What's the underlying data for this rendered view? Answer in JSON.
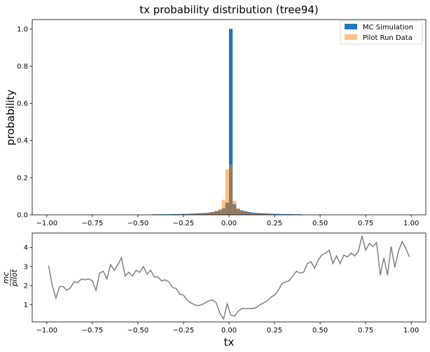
{
  "chart_data": [
    {
      "type": "bar",
      "title": "tx probability distribution (tree94)",
      "xlabel": "",
      "ylabel": "probability",
      "xlim": [
        -1.08,
        1.08
      ],
      "ylim": [
        0,
        1.05
      ],
      "xticks": [
        -1.0,
        -0.75,
        -0.5,
        -0.25,
        0.0,
        0.25,
        0.5,
        0.75,
        1.0
      ],
      "xtick_labels": [
        "−1.00",
        "−0.75",
        "−0.50",
        "−0.25",
        "0.00",
        "0.25",
        "0.50",
        "0.75",
        "1.00"
      ],
      "yticks": [
        0.0,
        0.2,
        0.4,
        0.6,
        0.8,
        1.0
      ],
      "ytick_labels": [
        "0.0",
        "0.2",
        "0.4",
        "0.6",
        "0.8",
        "1.0"
      ],
      "grid": false,
      "legend_position": "top-right",
      "bin_width": 0.02,
      "series": [
        {
          "name": "MC Simulation",
          "color": "#1f77b4",
          "bins": [
            [
              -0.42,
              0.003
            ],
            [
              -0.4,
              0.003
            ],
            [
              -0.38,
              0.003
            ],
            [
              -0.36,
              0.003
            ],
            [
              -0.34,
              0.003
            ],
            [
              -0.32,
              0.004
            ],
            [
              -0.3,
              0.004
            ],
            [
              -0.28,
              0.004
            ],
            [
              -0.26,
              0.005
            ],
            [
              -0.24,
              0.005
            ],
            [
              -0.22,
              0.006
            ],
            [
              -0.2,
              0.007
            ],
            [
              -0.18,
              0.008
            ],
            [
              -0.16,
              0.009
            ],
            [
              -0.14,
              0.01
            ],
            [
              -0.12,
              0.012
            ],
            [
              -0.1,
              0.015
            ],
            [
              -0.08,
              0.019
            ],
            [
              -0.06,
              0.025
            ],
            [
              -0.04,
              0.035
            ],
            [
              -0.02,
              0.065
            ],
            [
              0.0,
              1.0
            ],
            [
              0.02,
              0.058
            ],
            [
              0.04,
              0.033
            ],
            [
              0.06,
              0.024
            ],
            [
              0.08,
              0.019
            ],
            [
              0.1,
              0.015
            ],
            [
              0.12,
              0.012
            ],
            [
              0.14,
              0.01
            ],
            [
              0.16,
              0.009
            ],
            [
              0.18,
              0.008
            ],
            [
              0.2,
              0.007
            ],
            [
              0.22,
              0.006
            ],
            [
              0.24,
              0.005
            ],
            [
              0.26,
              0.005
            ],
            [
              0.28,
              0.004
            ],
            [
              0.3,
              0.004
            ],
            [
              0.32,
              0.004
            ],
            [
              0.34,
              0.003
            ],
            [
              0.36,
              0.003
            ],
            [
              0.38,
              0.003
            ]
          ]
        },
        {
          "name": "Pilot Run Data",
          "color": "#ff7f0e",
          "opacity": 0.5,
          "bins": [
            [
              -0.3,
              0.001
            ],
            [
              -0.28,
              0.002
            ],
            [
              -0.26,
              0.002
            ],
            [
              -0.24,
              0.003
            ],
            [
              -0.22,
              0.004
            ],
            [
              -0.2,
              0.005
            ],
            [
              -0.18,
              0.006
            ],
            [
              -0.16,
              0.007
            ],
            [
              -0.14,
              0.009
            ],
            [
              -0.12,
              0.012
            ],
            [
              -0.1,
              0.016
            ],
            [
              -0.08,
              0.022
            ],
            [
              -0.06,
              0.032
            ],
            [
              -0.04,
              0.08
            ],
            [
              -0.02,
              0.245
            ],
            [
              0.0,
              0.27
            ],
            [
              0.02,
              0.075
            ],
            [
              0.04,
              0.032
            ],
            [
              0.06,
              0.022
            ],
            [
              0.08,
              0.016
            ],
            [
              0.1,
              0.012
            ],
            [
              0.12,
              0.009
            ],
            [
              0.14,
              0.007
            ],
            [
              0.16,
              0.006
            ],
            [
              0.18,
              0.005
            ],
            [
              0.2,
              0.004
            ],
            [
              0.22,
              0.003
            ],
            [
              0.24,
              0.002
            ],
            [
              0.26,
              0.002
            ]
          ]
        }
      ]
    },
    {
      "type": "line",
      "title": "",
      "xlabel": "tx",
      "ylabel": "mc/pilot",
      "ylabel_numerator": "mc",
      "ylabel_denominator": "pilot",
      "xlim": [
        -1.08,
        1.08
      ],
      "ylim": [
        0.1,
        4.75
      ],
      "xticks": [
        -1.0,
        -0.75,
        -0.5,
        -0.25,
        0.0,
        0.25,
        0.5,
        0.75,
        1.0
      ],
      "xtick_labels": [
        "−1.00",
        "−0.75",
        "−0.50",
        "−0.25",
        "0.00",
        "0.25",
        "0.50",
        "0.75",
        "1.00"
      ],
      "yticks": [
        1,
        2,
        3,
        4
      ],
      "ytick_labels": [
        "1",
        "2",
        "3",
        "4"
      ],
      "grid": false,
      "series": [
        {
          "color": "#808080",
          "x": [
            -0.99,
            -0.97,
            -0.95,
            -0.93,
            -0.91,
            -0.89,
            -0.87,
            -0.85,
            -0.83,
            -0.81,
            -0.79,
            -0.77,
            -0.75,
            -0.73,
            -0.71,
            -0.69,
            -0.67,
            -0.65,
            -0.63,
            -0.61,
            -0.59,
            -0.57,
            -0.55,
            -0.53,
            -0.51,
            -0.49,
            -0.47,
            -0.45,
            -0.43,
            -0.41,
            -0.39,
            -0.37,
            -0.35,
            -0.33,
            -0.31,
            -0.29,
            -0.27,
            -0.25,
            -0.23,
            -0.21,
            -0.19,
            -0.17,
            -0.15,
            -0.13,
            -0.11,
            -0.09,
            -0.07,
            -0.05,
            -0.03,
            -0.01,
            0.01,
            0.03,
            0.05,
            0.07,
            0.09,
            0.11,
            0.13,
            0.15,
            0.17,
            0.19,
            0.21,
            0.23,
            0.25,
            0.27,
            0.29,
            0.31,
            0.33,
            0.35,
            0.37,
            0.39,
            0.41,
            0.43,
            0.45,
            0.47,
            0.49,
            0.51,
            0.53,
            0.55,
            0.57,
            0.59,
            0.61,
            0.63,
            0.65,
            0.67,
            0.69,
            0.71,
            0.73,
            0.75,
            0.77,
            0.79,
            0.81,
            0.83,
            0.85,
            0.87,
            0.89,
            0.91,
            0.93,
            0.95,
            0.97,
            0.99
          ],
          "y": [
            3.05,
            2.0,
            1.35,
            1.95,
            1.95,
            1.75,
            1.9,
            2.2,
            2.15,
            2.35,
            2.3,
            2.35,
            2.25,
            1.75,
            2.65,
            2.75,
            2.35,
            3.1,
            2.8,
            3.1,
            3.45,
            2.5,
            2.7,
            2.5,
            2.8,
            2.7,
            3.0,
            2.6,
            2.8,
            2.45,
            2.45,
            2.25,
            2.3,
            2.2,
            1.9,
            1.85,
            1.55,
            1.5,
            1.25,
            1.1,
            1.0,
            0.95,
            1.0,
            1.1,
            1.2,
            1.25,
            1.1,
            0.55,
            0.25,
            1.05,
            0.45,
            0.4,
            0.65,
            0.8,
            0.8,
            0.8,
            0.8,
            0.85,
            1.0,
            1.1,
            1.2,
            1.4,
            1.5,
            1.75,
            2.1,
            2.2,
            2.25,
            2.5,
            2.75,
            2.65,
            2.7,
            3.15,
            3.25,
            2.9,
            3.35,
            3.6,
            3.7,
            3.85,
            3.15,
            3.55,
            3.15,
            3.6,
            3.5,
            3.7,
            3.55,
            3.8,
            4.6,
            3.85,
            4.2,
            4.05,
            4.25,
            2.55,
            3.45,
            2.55,
            4.05,
            2.95,
            3.8,
            4.3,
            3.95,
            3.5
          ]
        }
      ]
    }
  ]
}
